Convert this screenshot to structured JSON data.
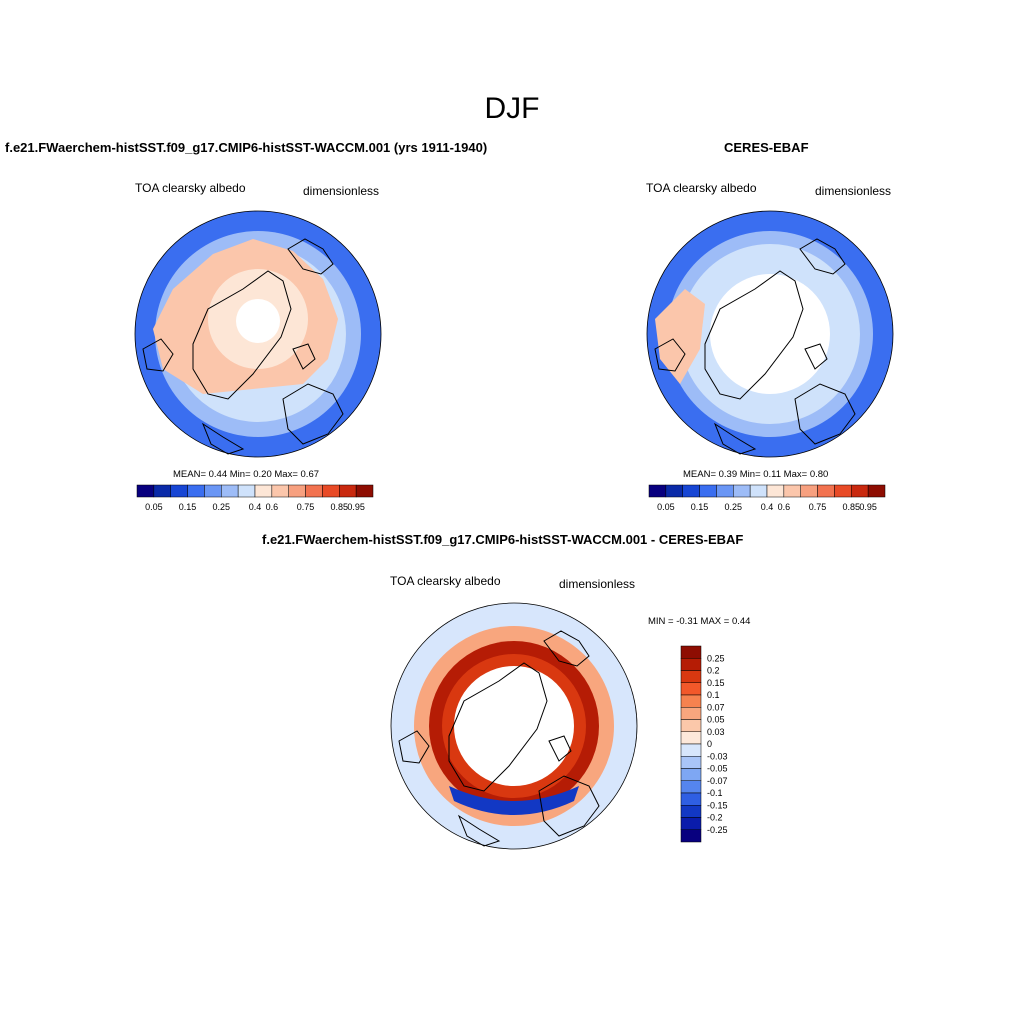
{
  "title": "DJF",
  "panels": [
    {
      "title": "f.e21.FWaerchem-histSST.f09_g17.CMIP6-histSST-WACCM.001 (yrs 1911-1940)",
      "variable": "TOA clearsky albedo",
      "units": "dimensionless",
      "stats": "MEAN=   0.44   Min=    0.20   Max=    0.67",
      "colorbar_labels": [
        "0.05",
        "0.15",
        "0.25",
        "0.4",
        "0.6",
        "0.75",
        "0.85",
        "0.95"
      ]
    },
    {
      "title": "CERES-EBAF",
      "variable": "TOA clearsky albedo",
      "units": "dimensionless",
      "stats": "MEAN=   0.39   Min=    0.11   Max=    0.80",
      "colorbar_labels": [
        "0.05",
        "0.15",
        "0.25",
        "0.4",
        "0.6",
        "0.75",
        "0.85",
        "0.95"
      ]
    },
    {
      "title": "f.e21.FWaerchem-histSST.f09_g17.CMIP6-histSST-WACCM.001 - CERES-EBAF",
      "variable": "TOA clearsky albedo",
      "units": "dimensionless",
      "stats": "MIN =  -0.31 MAX =   0.44",
      "colorbar_labels": [
        "0.25",
        "0.2",
        "0.15",
        "0.1",
        "0.07",
        "0.05",
        "0.03",
        "0",
        "-0.03",
        "-0.05",
        "-0.07",
        "-0.1",
        "-0.15",
        "-0.2",
        "-0.25"
      ]
    }
  ],
  "colors": {
    "abs_scale": [
      "#08007f",
      "#0a2aa8",
      "#1746d4",
      "#3a6ef0",
      "#6a96f5",
      "#9dbcf7",
      "#cfe2fb",
      "#fde6d6",
      "#fbc6ab",
      "#f7a07f",
      "#f2724f",
      "#e84a26",
      "#c9290f",
      "#8e0d02"
    ],
    "diff_scale": [
      "#8e0d02",
      "#b51c05",
      "#d93810",
      "#f2582a",
      "#f6824f",
      "#f8a67e",
      "#fbc8aa",
      "#fde8da",
      "#d7e6fc",
      "#a9c5f8",
      "#7ea7f3",
      "#5585ee",
      "#2f5fe3",
      "#1238c4",
      "#0a1cab",
      "#08007f"
    ]
  }
}
